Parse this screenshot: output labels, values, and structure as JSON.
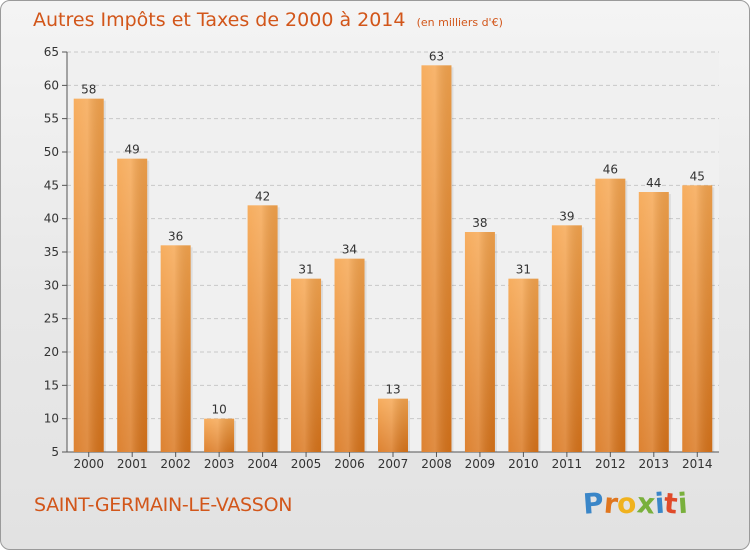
{
  "header": {
    "title": "Autres Impôts et Taxes de 2000 à 2014",
    "subtitle": "(en milliers d'€)"
  },
  "footer": {
    "commune": "SAINT-GERMAIN-LE-VASSON",
    "brand_letters": [
      {
        "char": "P",
        "color": "#3a86c8"
      },
      {
        "char": "r",
        "color": "#e0761e"
      },
      {
        "char": "o",
        "color": "#f0b21e"
      },
      {
        "char": "x",
        "color": "#79b03c"
      },
      {
        "char": "i",
        "color": "#3a86c8"
      },
      {
        "char": "t",
        "color": "#e04a2a"
      },
      {
        "char": "i",
        "color": "#79b03c"
      }
    ]
  },
  "colors": {
    "accent": "#d2561a",
    "bar_top": "#f6a54e",
    "bar_bottom": "#d9741a"
  },
  "chart_data": {
    "type": "bar",
    "categories": [
      "2000",
      "2001",
      "2002",
      "2003",
      "2004",
      "2005",
      "2006",
      "2007",
      "2008",
      "2009",
      "2010",
      "2011",
      "2012",
      "2013",
      "2014"
    ],
    "values": [
      58,
      49,
      36,
      10,
      42,
      31,
      34,
      13,
      63,
      38,
      31,
      39,
      46,
      44,
      45
    ],
    "ylim": [
      5,
      65
    ],
    "yticks": [
      5,
      10,
      15,
      20,
      25,
      30,
      35,
      40,
      45,
      50,
      55,
      60,
      65
    ],
    "grid": true,
    "legend": "none"
  }
}
